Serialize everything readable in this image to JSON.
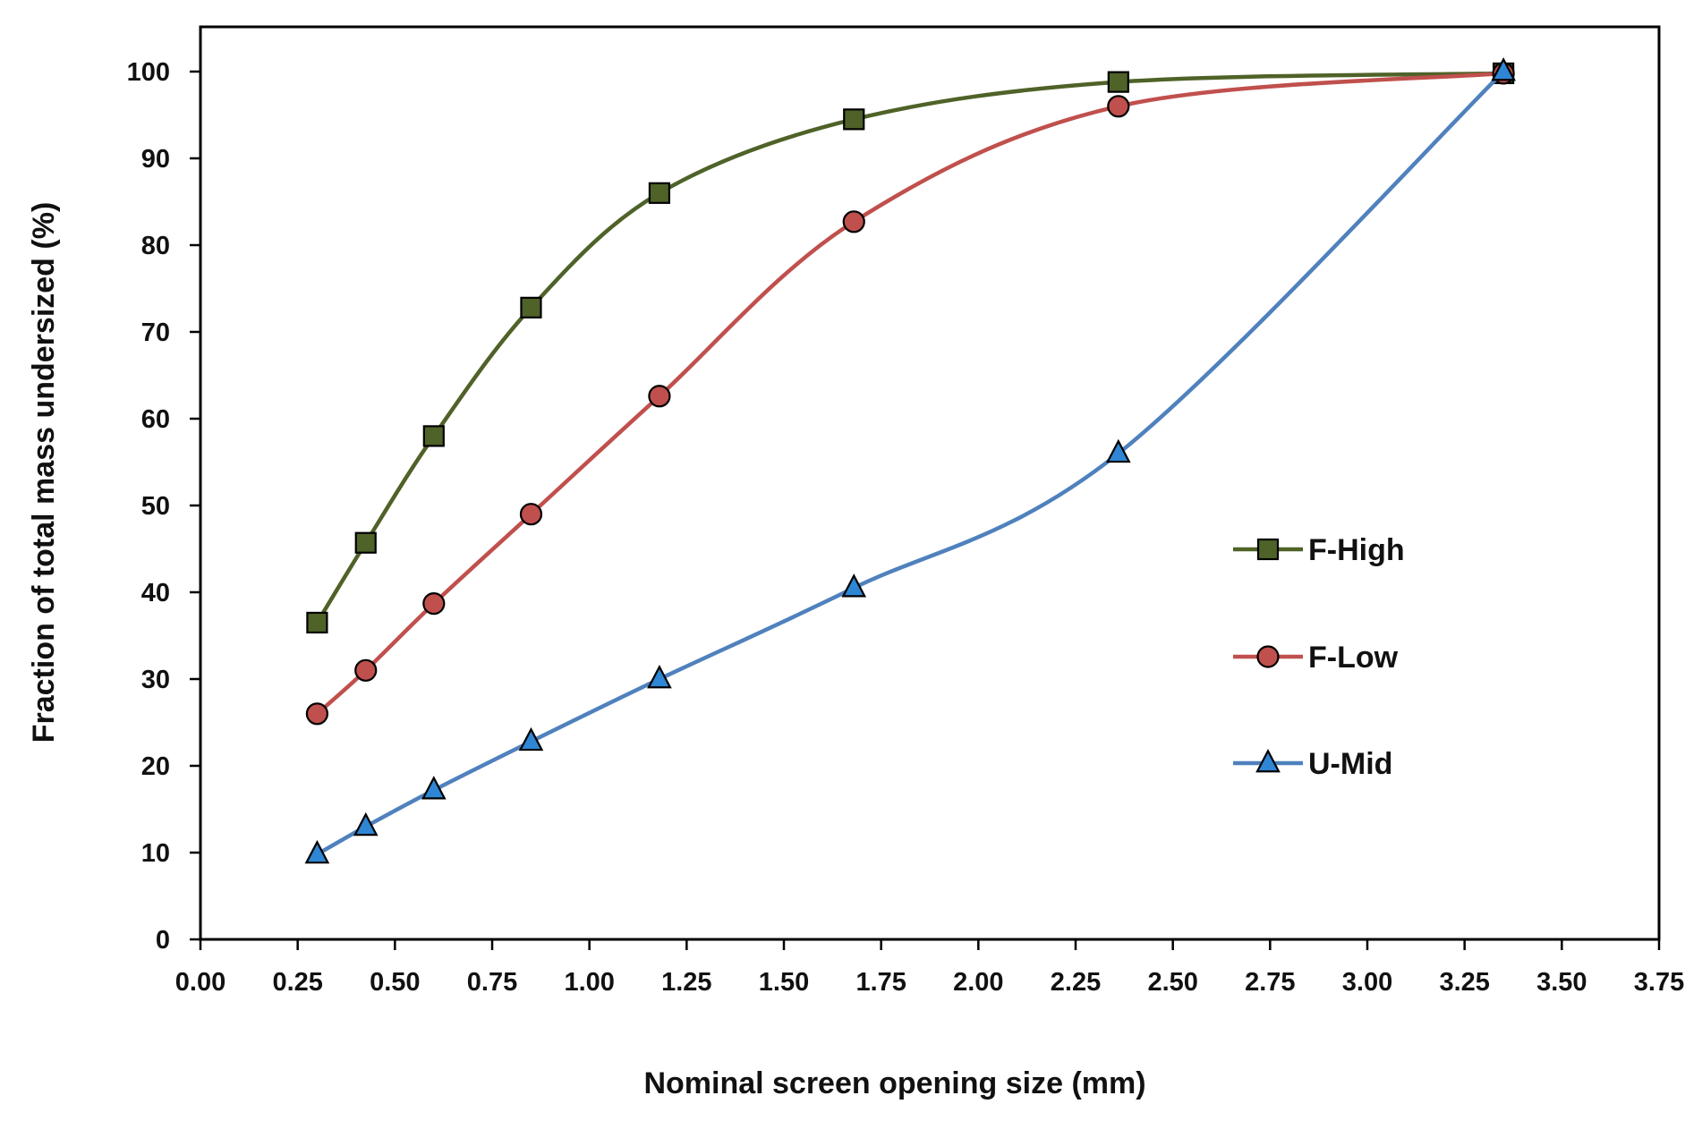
{
  "chart_data": {
    "type": "line",
    "title": "",
    "xlabel": "Nominal screen opening size  (mm)",
    "ylabel": "Fraction  of  total  mass  undersized  (%)",
    "xlim": [
      0,
      3.75
    ],
    "ylim": [
      0,
      100
    ],
    "xticks": [
      0.0,
      0.25,
      0.5,
      0.75,
      1.0,
      1.25,
      1.5,
      1.75,
      2.0,
      2.25,
      2.5,
      2.75,
      3.0,
      3.25,
      3.5,
      3.75
    ],
    "xtick_labels": [
      "0.00",
      "0.25",
      "0.50",
      "0.75",
      "1.00",
      "1.25",
      "1.50",
      "1.75",
      "2.00",
      "2.25",
      "2.50",
      "2.75",
      "3.00",
      "3.25",
      "3.50",
      "3.75"
    ],
    "yticks": [
      0,
      10,
      20,
      30,
      40,
      50,
      60,
      70,
      80,
      90,
      100
    ],
    "ytick_labels": [
      "0",
      "10",
      "20",
      "30",
      "40",
      "50",
      "60",
      "70",
      "80",
      "90",
      "100"
    ],
    "grid": false,
    "legend_position": "right",
    "x": [
      0.3,
      0.425,
      0.6,
      0.85,
      1.18,
      1.68,
      2.36,
      3.35
    ],
    "series": [
      {
        "name": "F-High",
        "marker": "square",
        "line_color": "#4f6228",
        "marker_color": "#4f6228",
        "values": [
          36.5,
          45.7,
          58.0,
          72.8,
          86.0,
          94.5,
          98.8,
          99.8
        ]
      },
      {
        "name": "F-Low",
        "marker": "circle",
        "line_color": "#c0504d",
        "marker_color": "#c0504d",
        "values": [
          26.0,
          31.0,
          38.7,
          49.0,
          62.6,
          82.7,
          96.0,
          99.8
        ]
      },
      {
        "name": "U-Mid",
        "marker": "triangle",
        "line_color": "#4f81bd",
        "marker_color": "#2e86d4",
        "values": [
          9.8,
          13.0,
          17.2,
          22.8,
          30.0,
          40.5,
          56.0,
          100.0
        ]
      }
    ]
  }
}
